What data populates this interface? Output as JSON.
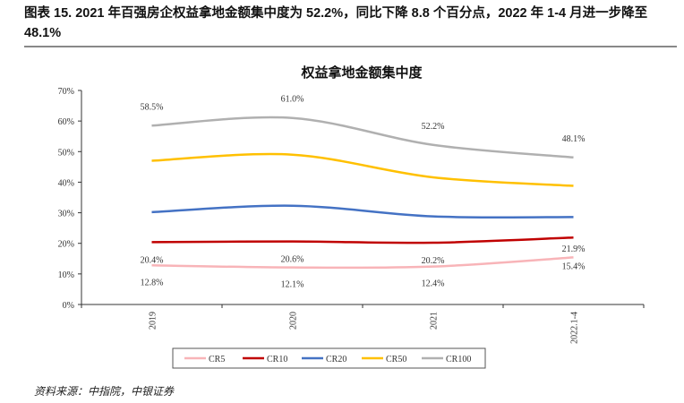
{
  "caption": "图表 15. 2021 年百强房企权益拿地金额集中度为 52.2%，同比下降 8.8 个百分点，2022 年 1-4 月进一步降至 48.1%",
  "source": "资料来源：中指院，中银证券",
  "chart_data": {
    "type": "line",
    "title": "权益拿地金额集中度",
    "categories": [
      "2019",
      "2020",
      "2021",
      "2022.1-4"
    ],
    "ylim": [
      0,
      70
    ],
    "yticks": [
      "0%",
      "10%",
      "20%",
      "30%",
      "40%",
      "50%",
      "60%",
      "70%"
    ],
    "legend_position": "bottom",
    "series": [
      {
        "name": "CR5",
        "color": "#F8B4B8",
        "values": [
          12.8,
          12.1,
          12.4,
          15.4
        ],
        "labels": [
          "12.8%",
          "12.1%",
          "12.4%",
          "15.4%"
        ]
      },
      {
        "name": "CR10",
        "color": "#C00000",
        "values": [
          20.4,
          20.6,
          20.2,
          21.9
        ],
        "labels": [
          "20.4%",
          "20.6%",
          "20.2%",
          "21.9%"
        ]
      },
      {
        "name": "CR20",
        "color": "#4472C4",
        "values": [
          30.2,
          32.3,
          28.8,
          28.6
        ]
      },
      {
        "name": "CR50",
        "color": "#FFC000",
        "values": [
          47.0,
          49.0,
          41.6,
          38.8
        ]
      },
      {
        "name": "CR100",
        "color": "#B0B0B0",
        "values": [
          58.5,
          61.0,
          52.2,
          48.1
        ],
        "labels": [
          "58.5%",
          "61.0%",
          "52.2%",
          "48.1%"
        ]
      }
    ]
  }
}
